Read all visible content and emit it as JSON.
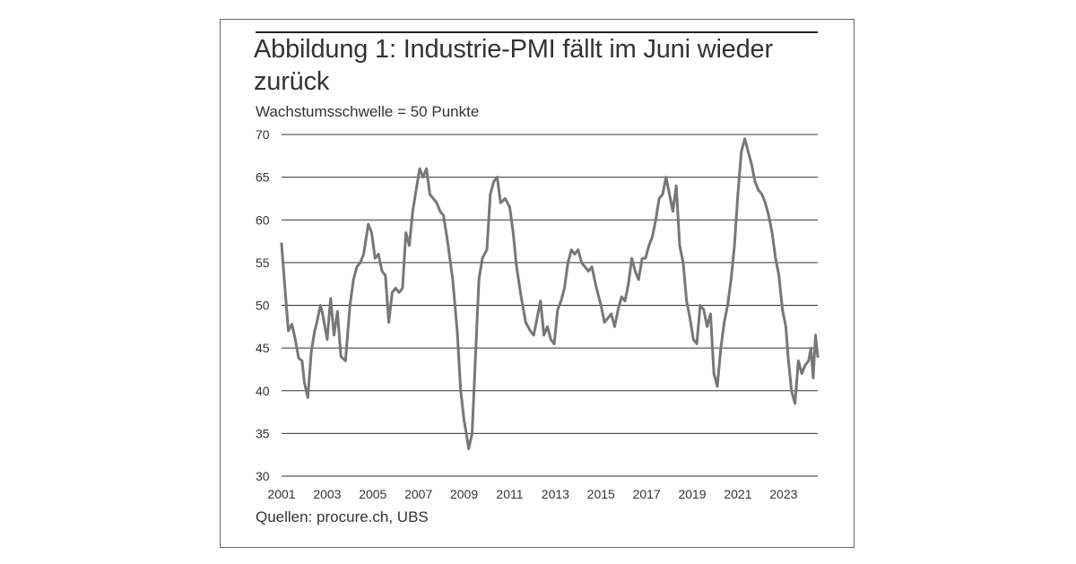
{
  "figure": {
    "title": "Abbildung 1: Industrie-PMI fällt im Juni wieder zurück",
    "subtitle": "Wachstumsschwelle = 50 Punkte",
    "source": "Quellen: procure.ch, UBS"
  },
  "chart_data": {
    "type": "line",
    "title": "Abbildung 1: Industrie-PMI fällt im Juni wieder zurück",
    "subtitle": "Wachstumsschwelle = 50 Punkte",
    "xlabel": "",
    "ylabel": "",
    "ylim": [
      30,
      70
    ],
    "xlim": [
      2001,
      2024.5
    ],
    "yticks": [
      30,
      35,
      40,
      45,
      50,
      55,
      60,
      65,
      70
    ],
    "xticks": [
      "2001",
      "2003",
      "2005",
      "2007",
      "2009",
      "2011",
      "2013",
      "2015",
      "2017",
      "2019",
      "2021",
      "2023"
    ],
    "grid": "horizontal",
    "legend": "none",
    "color": "#777777",
    "series": [
      {
        "x": [
          2001.0,
          2001.15,
          2001.3,
          2001.45,
          2001.6,
          2001.75,
          2001.9,
          2002.0,
          2002.15,
          2002.3,
          2002.45,
          2002.55,
          2002.7,
          2002.8,
          2002.9,
          2003.0,
          2003.15,
          2003.3,
          2003.45,
          2003.6,
          2003.8,
          2004.0,
          2004.15,
          2004.3,
          2004.45,
          2004.6,
          2004.8,
          2004.95,
          2005.1,
          2005.25,
          2005.4,
          2005.55,
          2005.7,
          2005.85,
          2006.0,
          2006.15,
          2006.3,
          2006.45,
          2006.6,
          2006.75,
          2006.9,
          2007.05,
          2007.2,
          2007.35,
          2007.5,
          2007.65,
          2007.8,
          2007.95,
          2008.1,
          2008.3,
          2008.5,
          2008.7,
          2008.85,
          2009.0,
          2009.1,
          2009.2,
          2009.35,
          2009.5,
          2009.65,
          2009.8,
          2010.0,
          2010.15,
          2010.3,
          2010.45,
          2010.6,
          2010.8,
          2011.0,
          2011.15,
          2011.3,
          2011.5,
          2011.7,
          2011.9,
          2012.05,
          2012.2,
          2012.35,
          2012.5,
          2012.65,
          2012.8,
          2012.95,
          2013.1,
          2013.25,
          2013.4,
          2013.55,
          2013.7,
          2013.85,
          2014.0,
          2014.15,
          2014.3,
          2014.45,
          2014.6,
          2014.8,
          2015.0,
          2015.15,
          2015.3,
          2015.45,
          2015.6,
          2015.75,
          2015.9,
          2016.05,
          2016.2,
          2016.35,
          2016.5,
          2016.65,
          2016.8,
          2016.95,
          2017.1,
          2017.25,
          2017.4,
          2017.55,
          2017.7,
          2017.85,
          2018.0,
          2018.15,
          2018.3,
          2018.45,
          2018.6,
          2018.75,
          2018.9,
          2019.05,
          2019.2,
          2019.35,
          2019.5,
          2019.65,
          2019.8,
          2019.95,
          2020.1,
          2020.25,
          2020.4,
          2020.55,
          2020.7,
          2020.85,
          2021.0,
          2021.15,
          2021.3,
          2021.45,
          2021.6,
          2021.75,
          2021.9,
          2022.05,
          2022.2,
          2022.35,
          2022.5,
          2022.65,
          2022.8,
          2022.95,
          2023.1,
          2023.2,
          2023.35,
          2023.5,
          2023.65,
          2023.8,
          2023.95,
          2024.1,
          2024.2,
          2024.3,
          2024.4,
          2024.5
        ],
        "values": [
          57.2,
          52.0,
          47.0,
          47.8,
          46.0,
          43.8,
          43.5,
          41.0,
          39.2,
          44.5,
          47.0,
          48.0,
          50.0,
          49.0,
          47.5,
          46.0,
          50.8,
          46.5,
          49.3,
          44.0,
          43.5,
          50.0,
          53.0,
          54.5,
          55.0,
          56.0,
          59.5,
          58.5,
          55.5,
          56.0,
          54.0,
          53.5,
          48.0,
          51.5,
          52.0,
          51.5,
          52.0,
          58.5,
          57.0,
          61.0,
          63.5,
          66.0,
          65.0,
          66.0,
          63.0,
          62.5,
          62.0,
          61.0,
          60.5,
          57.0,
          53.0,
          47.0,
          40.0,
          36.5,
          35.0,
          33.2,
          35.0,
          44.0,
          53.0,
          55.5,
          56.5,
          63.0,
          64.5,
          65.0,
          62.0,
          62.5,
          61.5,
          58.5,
          54.5,
          51.0,
          48.0,
          47.0,
          46.5,
          48.5,
          50.5,
          46.5,
          47.5,
          46.0,
          45.5,
          49.5,
          50.5,
          52.0,
          55.0,
          56.5,
          56.0,
          56.5,
          55.0,
          54.5,
          54.0,
          54.5,
          52.0,
          50.0,
          48.0,
          48.5,
          49.0,
          47.5,
          49.5,
          51.0,
          50.5,
          52.5,
          55.5,
          54.0,
          53.0,
          55.5,
          55.5,
          57.0,
          58.0,
          60.0,
          62.5,
          63.0,
          65.0,
          63.0,
          61.0,
          64.0,
          57.0,
          55.0,
          50.5,
          48.5,
          46.0,
          45.5,
          50.0,
          49.5,
          47.5,
          49.0,
          42.0,
          40.5,
          45.0,
          48.0,
          50.0,
          53.0,
          57.0,
          63.0,
          68.0,
          69.5,
          68.0,
          66.5,
          64.5,
          63.5,
          63.0,
          62.0,
          60.5,
          58.5,
          55.5,
          53.5,
          49.5,
          47.5,
          44.0,
          40.0,
          38.5,
          43.5,
          42.0,
          43.0,
          43.5,
          45.0,
          41.5,
          46.5,
          44.0
        ]
      }
    ]
  }
}
